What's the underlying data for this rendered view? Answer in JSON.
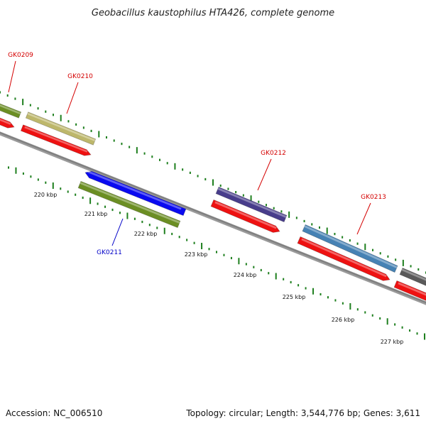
{
  "title": "Geobacillus kaustophilus HTA426, complete genome",
  "footer": {
    "accession": "Accession: NC_006510",
    "summary": "Topology: circular; Length: 3,544,776 bp; Genes: 3,611"
  },
  "colors": {
    "backbone": "#7f7f7f",
    "tick": "#1e7f1e",
    "label_red": "#d40000",
    "label_blue": "#0000c8",
    "cds_red": "#ee1111",
    "gene_olive": "#6b8e23",
    "gene_khaki": "#bdb76b",
    "gene_blue": "#0a0af0",
    "gene_purple": "#483d8b",
    "gene_steel": "#4682b4",
    "gene_gray": "#5a5a5a"
  },
  "tick_labels": [
    "220 kbp",
    "221 kbp",
    "222 kbp",
    "223 kbp",
    "224 kbp",
    "225 kbp",
    "226 kbp",
    "227 kbp"
  ],
  "genes": [
    {
      "label": "GK0209",
      "strand": "forward",
      "color": "gene_olive"
    },
    {
      "label": "GK0210",
      "strand": "forward",
      "color": "gene_khaki"
    },
    {
      "label": "GK0211",
      "strand": "reverse",
      "color": "gene_blue"
    },
    {
      "label": "GK0212",
      "strand": "forward",
      "color": "gene_purple"
    },
    {
      "label": "GK0213",
      "strand": "forward",
      "color": "gene_steel"
    },
    {
      "label": "",
      "strand": "forward",
      "color": "gene_gray"
    }
  ]
}
